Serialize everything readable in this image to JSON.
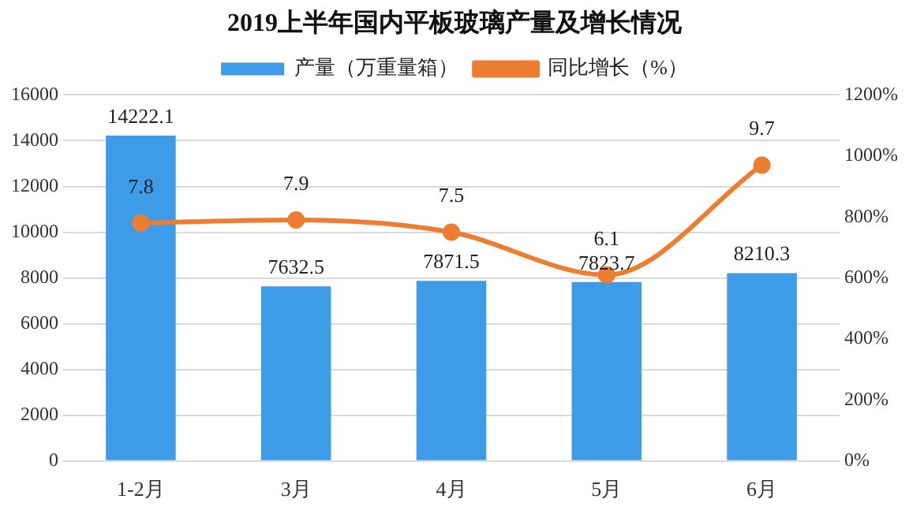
{
  "chart_data": {
    "type": "bar",
    "title": "2019上半年国内平板玻璃产量及增长情况",
    "categories": [
      "1-2月",
      "3月",
      "4月",
      "5月",
      "6月"
    ],
    "series": [
      {
        "name": "产量（万重量箱）",
        "color": "#3e9be8",
        "values": [
          14222.1,
          7632.5,
          7871.5,
          7823.7,
          8210.3
        ],
        "value_labels": [
          "14222.1",
          "7632.5",
          "7871.5",
          "7823.7",
          "8210.3"
        ]
      },
      {
        "name": "同比增长（%）",
        "type": "line",
        "axis": "y2",
        "color": "#ed7d31",
        "values": [
          7.8,
          7.9,
          7.5,
          6.1,
          9.7
        ],
        "value_labels": [
          "7.8",
          "7.9",
          "7.5",
          "6.1",
          "9.7"
        ]
      }
    ],
    "ylim": [
      0,
      16000
    ],
    "yticks": [
      0,
      2000,
      4000,
      6000,
      8000,
      10000,
      12000,
      14000,
      16000
    ],
    "y2lim": [
      0,
      12
    ],
    "y2ticks": [
      {
        "value": 0,
        "label": "0%"
      },
      {
        "value": 2,
        "label": "200%"
      },
      {
        "value": 4,
        "label": "400%"
      },
      {
        "value": 6,
        "label": "600%"
      },
      {
        "value": 8,
        "label": "800%"
      },
      {
        "value": 10,
        "label": "1000%"
      },
      {
        "value": 12,
        "label": "1200%"
      }
    ],
    "grid": "y",
    "legend": "top",
    "marker": "circle",
    "line_style": "solid"
  }
}
